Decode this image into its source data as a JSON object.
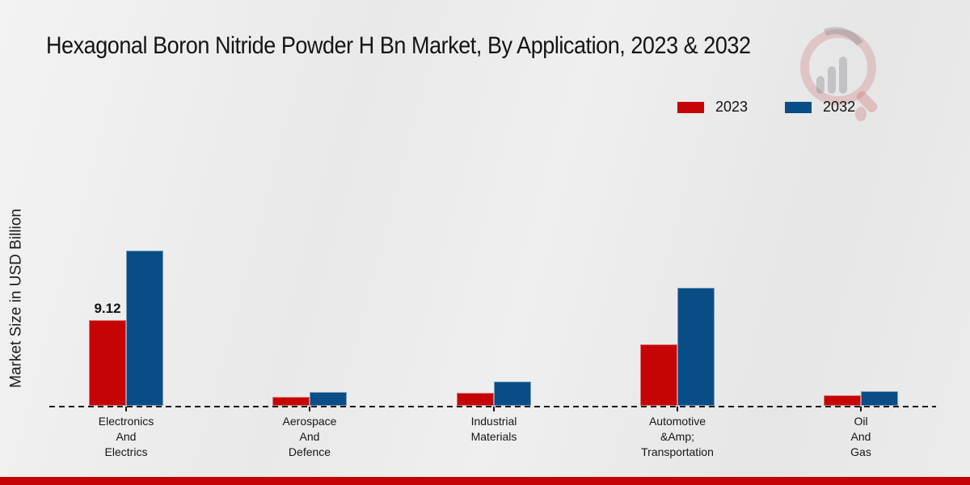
{
  "title": "Hexagonal Boron Nitride Powder H Bn Market, By Application, 2023 & 2032",
  "ylabel": "Market Size in USD Billion",
  "legend": {
    "items": [
      {
        "label": "2023",
        "color": "#c50505"
      },
      {
        "label": "2032",
        "color": "#084d86"
      }
    ]
  },
  "watermark": {
    "icon": "magnifier-bar-chart-logo"
  },
  "footer": {
    "color": "#c40404"
  },
  "colors": {
    "bar_2023": "#c50505",
    "bar_2032": "#084d86",
    "baseline": "#161616"
  },
  "chart_data": {
    "type": "bar",
    "title": "Hexagonal Boron Nitride Powder H Bn Market, By Application, 2023 & 2032",
    "xlabel": "",
    "ylabel": "Market Size in USD Billion",
    "categories": [
      "Electronics And Electrics",
      "Aerospace And Defence",
      "Industrial Materials",
      "Automotive &Amp; Transportation",
      "Oil And Gas"
    ],
    "category_lines": [
      [
        "Electronics",
        "And",
        "Electrics"
      ],
      [
        "Aerospace",
        "And",
        "Defence"
      ],
      [
        "Industrial",
        "Materials"
      ],
      [
        "Automotive",
        "&Amp;",
        "Transportation"
      ],
      [
        "Oil",
        "And",
        "Gas"
      ]
    ],
    "series": [
      {
        "name": "2023",
        "color": "#c50505",
        "values": [
          9.12,
          0.95,
          1.38,
          6.54,
          1.12
        ]
      },
      {
        "name": "2032",
        "color": "#084d86",
        "values": [
          16.5,
          1.5,
          2.58,
          12.6,
          1.55
        ]
      }
    ],
    "annotations": [
      {
        "series": "2023",
        "category_index": 0,
        "text": "9.12"
      }
    ],
    "ylim": [
      0,
      18
    ],
    "grid": false,
    "axis_baseline_style": "dashed",
    "legend_position": "top-right"
  }
}
